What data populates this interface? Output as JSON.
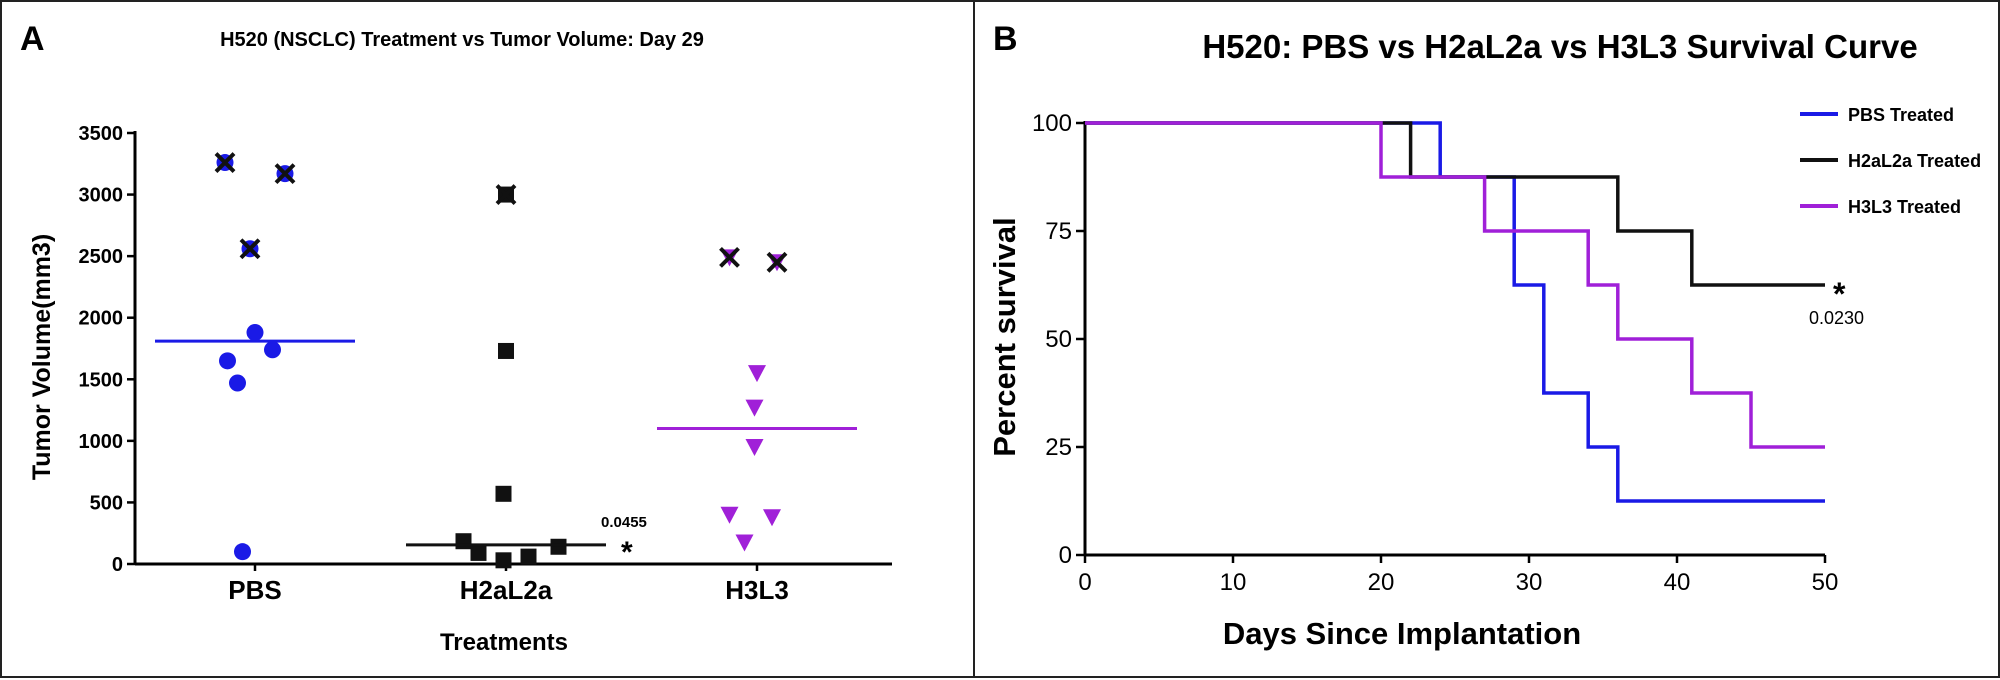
{
  "chart_data": [
    {
      "panel_label": "A",
      "type": "scatter",
      "title": "H520 (NSCLC) Treatment vs Tumor Volume: Day 29",
      "xlabel": "Treatments",
      "ylabel": "Tumor Volume(mm3)",
      "categories": [
        "PBS",
        "H2aL2a",
        "H3L3"
      ],
      "ylim": [
        0,
        3500
      ],
      "yticks": [
        "0",
        "500",
        "1000",
        "1500",
        "2000",
        "2500",
        "3000",
        "3500"
      ],
      "grid": false,
      "series": [
        {
          "category": "PBS",
          "marker": "circle",
          "color": "#1a1ae6",
          "points": [
            {
              "x": -0.12,
              "y": 3260,
              "crossed": true
            },
            {
              "x": 0.12,
              "y": 3170,
              "crossed": true
            },
            {
              "x": -0.02,
              "y": 2560,
              "crossed": true
            },
            {
              "x": 0.0,
              "y": 1880
            },
            {
              "x": 0.07,
              "y": 1740
            },
            {
              "x": -0.11,
              "y": 1650
            },
            {
              "x": -0.07,
              "y": 1470
            },
            {
              "x": -0.05,
              "y": 100
            }
          ],
          "median": 1810
        },
        {
          "category": "H2aL2a",
          "marker": "square",
          "color": "#111111",
          "points": [
            {
              "x": 0.0,
              "y": 3000,
              "crossed": true
            },
            {
              "x": 0.0,
              "y": 1730
            },
            {
              "x": -0.01,
              "y": 570
            },
            {
              "x": -0.17,
              "y": 185
            },
            {
              "x": 0.21,
              "y": 140
            },
            {
              "x": -0.11,
              "y": 90
            },
            {
              "x": 0.09,
              "y": 60
            },
            {
              "x": -0.01,
              "y": 30
            }
          ],
          "median": 155,
          "annotation": {
            "text": "0.0455",
            "mark": "*"
          }
        },
        {
          "category": "H3L3",
          "marker": "triangle-down",
          "color": "#a020d8",
          "points": [
            {
              "x": -0.11,
              "y": 2490,
              "crossed": true
            },
            {
              "x": 0.08,
              "y": 2450,
              "crossed": true
            },
            {
              "x": 0.0,
              "y": 1550
            },
            {
              "x": -0.01,
              "y": 1270
            },
            {
              "x": -0.01,
              "y": 950
            },
            {
              "x": -0.11,
              "y": 400
            },
            {
              "x": 0.06,
              "y": 380
            },
            {
              "x": -0.05,
              "y": 175
            }
          ],
          "median": 1100
        }
      ]
    },
    {
      "panel_label": "B",
      "type": "line",
      "step": true,
      "title": "H520: PBS vs H2aL2a vs H3L3 Survival Curve",
      "xlabel": "Days Since Implantation",
      "ylabel": "Percent survival",
      "xlim": [
        0,
        50
      ],
      "ylim": [
        0,
        100
      ],
      "xticks": [
        "0",
        "10",
        "20",
        "30",
        "40",
        "50"
      ],
      "yticks": [
        "0",
        "25",
        "50",
        "75",
        "100"
      ],
      "grid": false,
      "legend_position": "top-right",
      "series": [
        {
          "name": "PBS Treated",
          "color": "#1a1ae6",
          "points": [
            [
              0,
              100
            ],
            [
              24,
              100
            ],
            [
              24,
              87.5
            ],
            [
              29,
              87.5
            ],
            [
              29,
              62.5
            ],
            [
              31,
              62.5
            ],
            [
              31,
              37.5
            ],
            [
              34,
              37.5
            ],
            [
              34,
              25
            ],
            [
              36,
              25
            ],
            [
              36,
              12.5
            ],
            [
              50,
              12.5
            ]
          ]
        },
        {
          "name": "H2aL2a Treated",
          "color": "#111111",
          "points": [
            [
              0,
              100
            ],
            [
              22,
              100
            ],
            [
              22,
              87.5
            ],
            [
              36,
              87.5
            ],
            [
              36,
              75
            ],
            [
              41,
              75
            ],
            [
              41,
              62.5
            ],
            [
              50,
              62.5
            ]
          ]
        },
        {
          "name": "H3L3 Treated",
          "color": "#a020d8",
          "points": [
            [
              0,
              100
            ],
            [
              20,
              100
            ],
            [
              20,
              87.5
            ],
            [
              27,
              87.5
            ],
            [
              27,
              75
            ],
            [
              34,
              75
            ],
            [
              34,
              62.5
            ],
            [
              36,
              62.5
            ],
            [
              36,
              50
            ],
            [
              41,
              50
            ],
            [
              41,
              37.5
            ],
            [
              45,
              37.5
            ],
            [
              45,
              25
            ],
            [
              50,
              25
            ]
          ]
        }
      ],
      "annotation": {
        "mark": "*",
        "text": "0.0230"
      }
    }
  ]
}
